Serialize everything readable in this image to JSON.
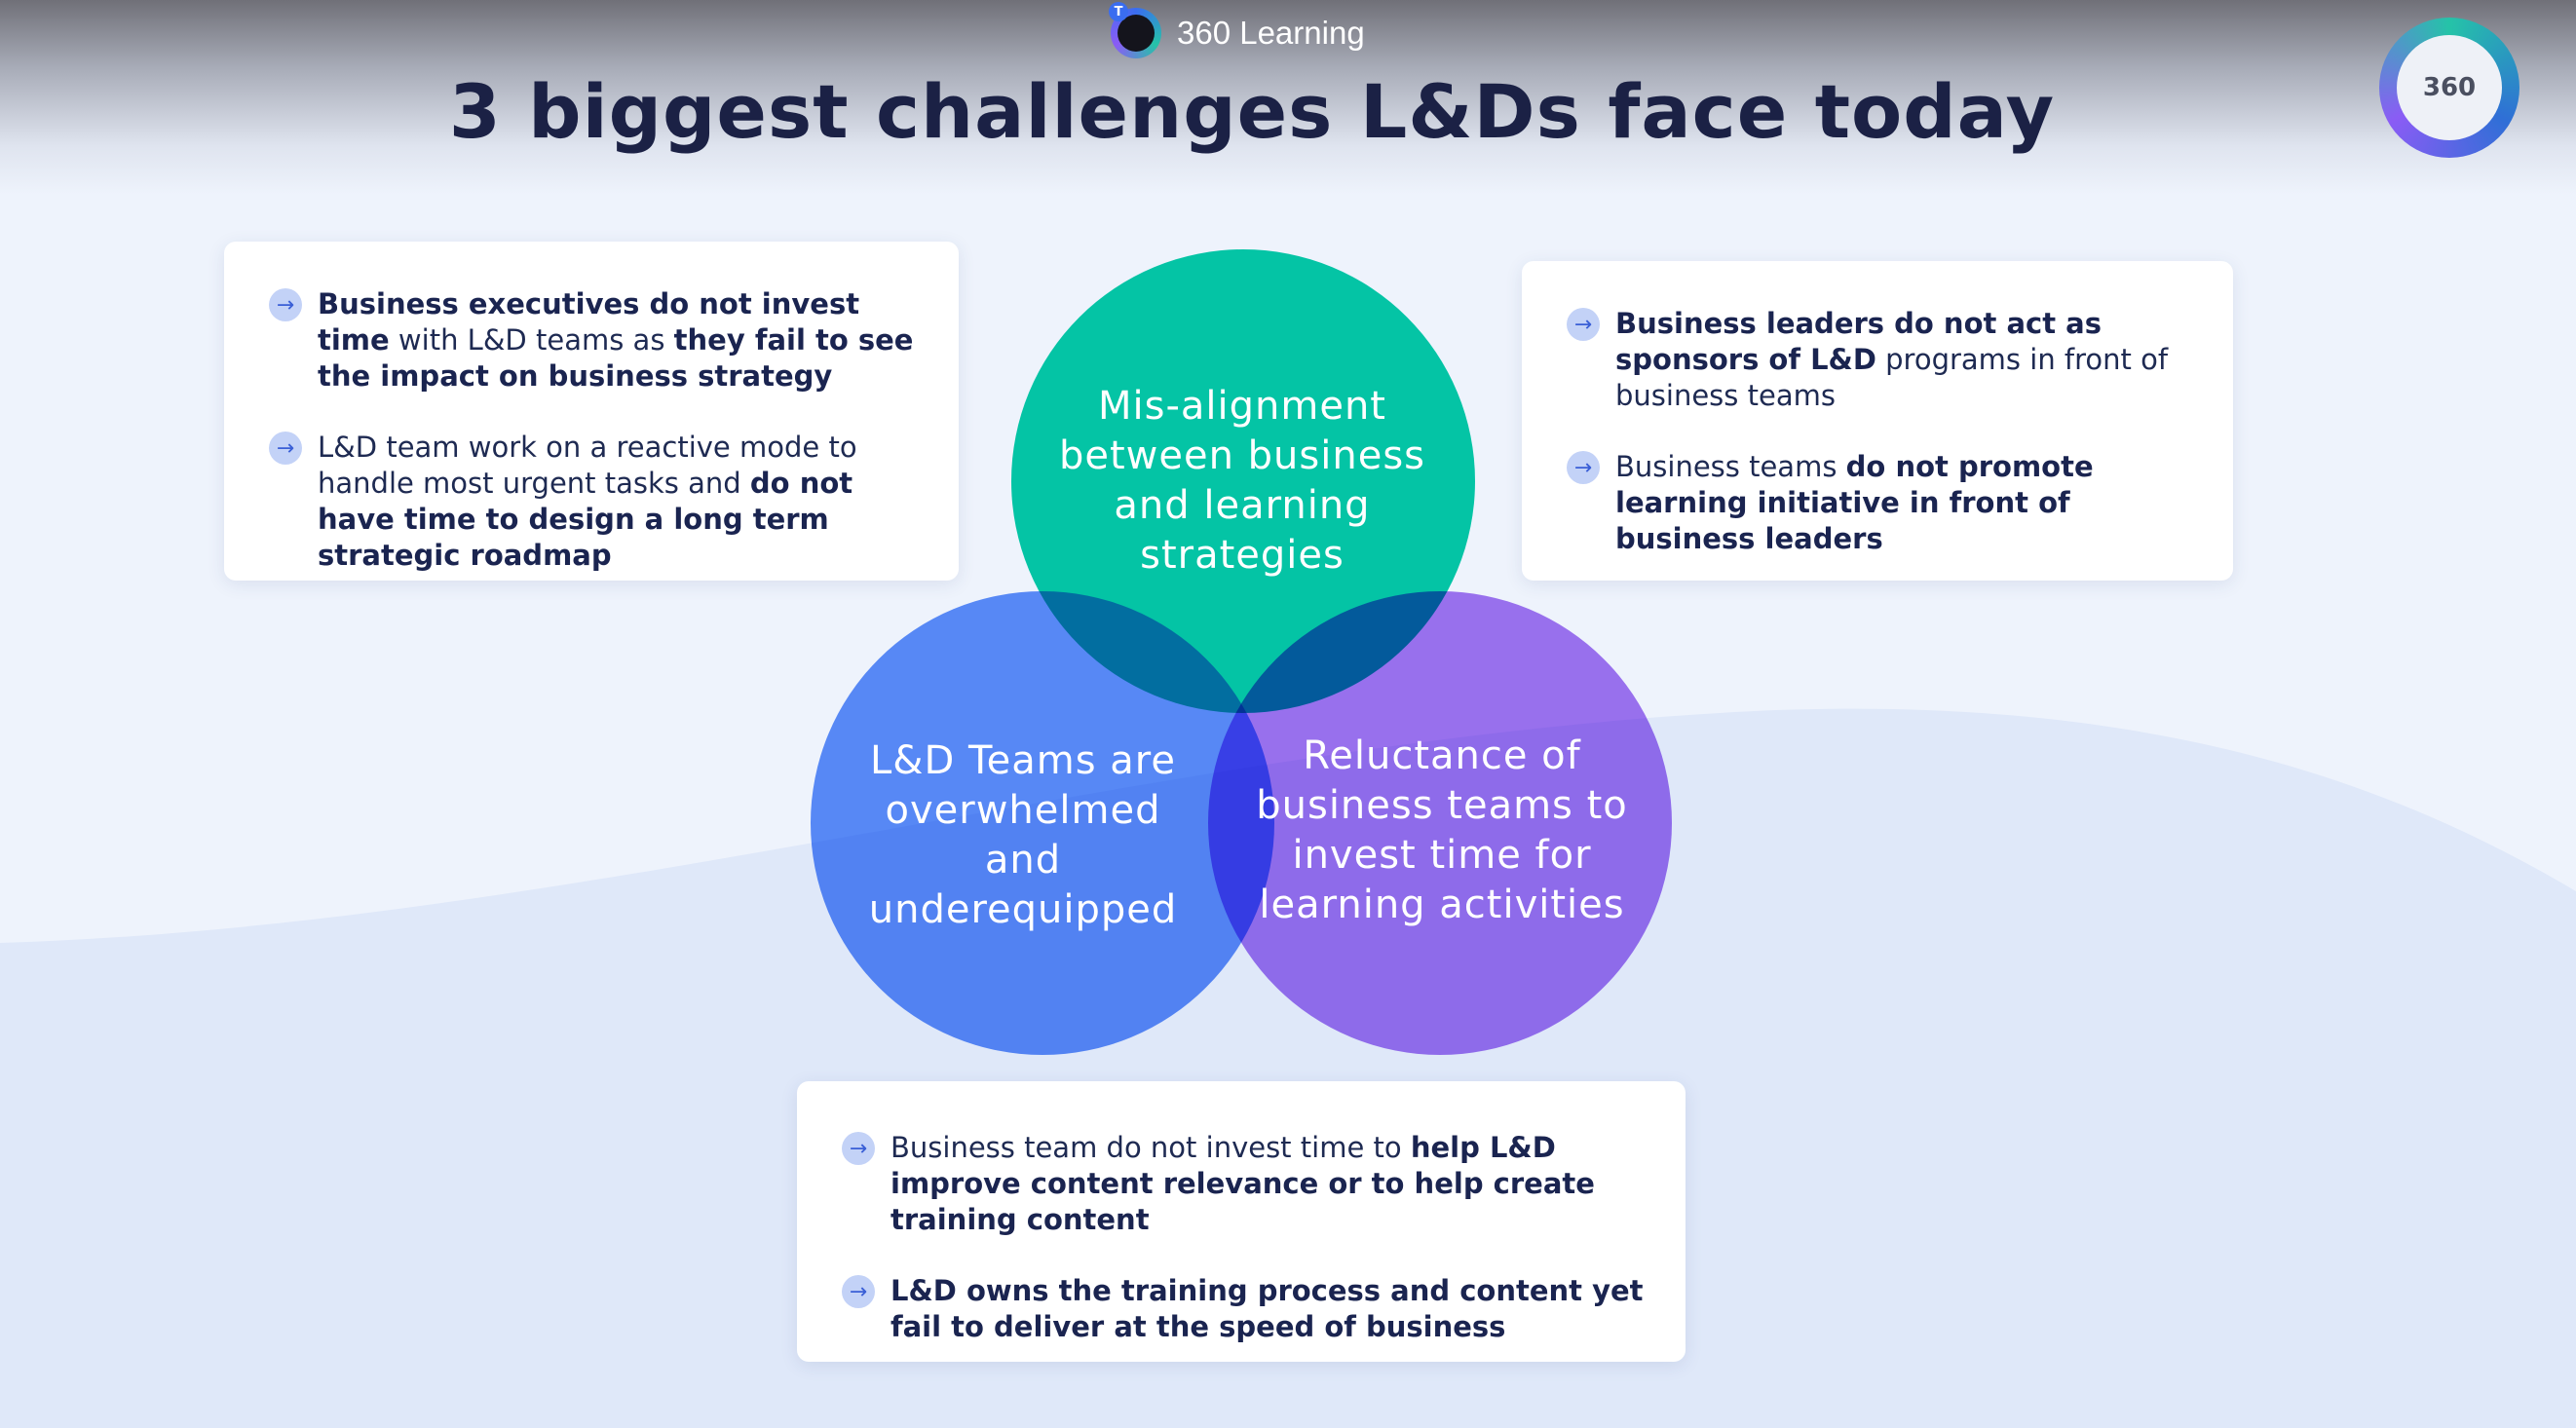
{
  "colors": {
    "title": "#1b2145",
    "text": "#1e2a52",
    "teal": "#04c4a5",
    "blue": "#4f86f7",
    "purple": "#9b69ef",
    "arrow_bg": "#c3d2f7",
    "background": "#eef3fc"
  },
  "header": {
    "app_name": "360 Learning",
    "app_icon": "360learning-app-icon",
    "badge": "T"
  },
  "corner_logo": {
    "text": "360"
  },
  "title": "3 biggest challenges L&Ds face today",
  "venn": {
    "circles": [
      {
        "id": "top",
        "label": "Mis-alignment between business and learning strategies",
        "color": "#04c4a5"
      },
      {
        "id": "left",
        "label": "L&D Teams are overwhelmed and underequipped",
        "color": "#4f86f7"
      },
      {
        "id": "right",
        "label": "Reluctance of business teams to invest time for learning activities",
        "color": "#9b69ef"
      }
    ]
  },
  "cards": {
    "top_left": {
      "icon": "arrow-right-icon",
      "items": [
        {
          "segments": [
            {
              "text": "Business executives do not invest time",
              "bold": true
            },
            {
              "text": " with L&D teams as ",
              "bold": false
            },
            {
              "text": "they fail to see the impact on business strategy",
              "bold": true
            }
          ]
        },
        {
          "segments": [
            {
              "text": "L&D team work on a reactive mode to handle most urgent tasks and ",
              "bold": false
            },
            {
              "text": "do not have time to design a long term strategic roadmap",
              "bold": true
            }
          ]
        }
      ]
    },
    "top_right": {
      "icon": "arrow-right-icon",
      "items": [
        {
          "segments": [
            {
              "text": "Business leaders do not act as sponsors of L&D",
              "bold": true
            },
            {
              "text": " programs in front of business teams",
              "bold": false
            }
          ]
        },
        {
          "segments": [
            {
              "text": "Business teams ",
              "bold": false
            },
            {
              "text": "do not promote learning initiative in front of business leaders",
              "bold": true
            }
          ]
        }
      ]
    },
    "bottom": {
      "icon": "arrow-right-icon",
      "items": [
        {
          "segments": [
            {
              "text": "Business team do not invest time to ",
              "bold": false
            },
            {
              "text": "help L&D improve content relevance or to help create training content",
              "bold": true
            }
          ]
        },
        {
          "segments": [
            {
              "text": "L&D owns the training process and content yet fail to deliver at the speed of business",
              "bold": true
            }
          ]
        }
      ]
    }
  }
}
